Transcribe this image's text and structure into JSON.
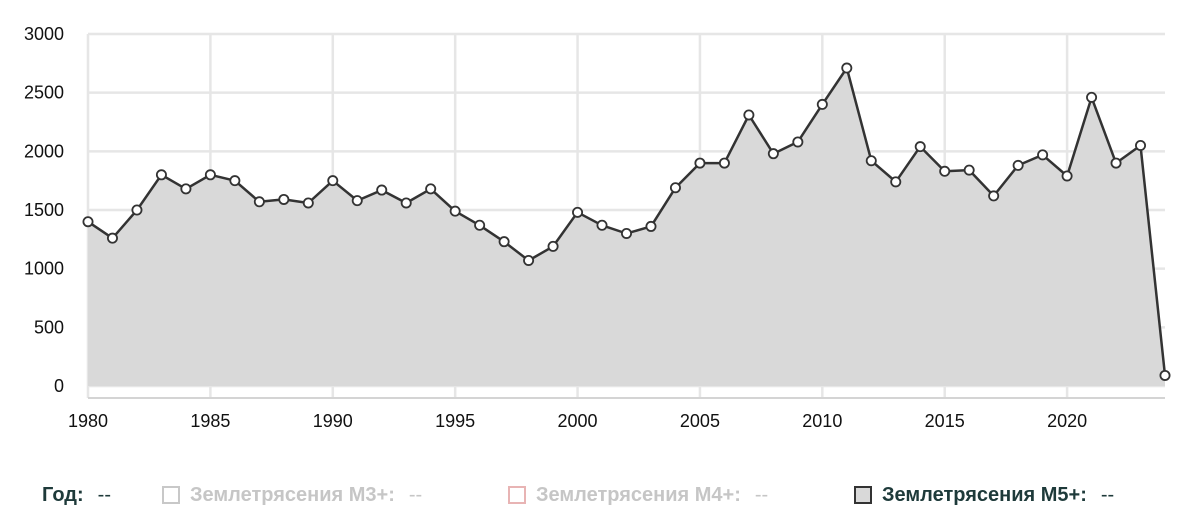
{
  "chart_data": {
    "type": "area",
    "x": [
      1980,
      1981,
      1982,
      1983,
      1984,
      1985,
      1986,
      1987,
      1988,
      1989,
      1990,
      1991,
      1992,
      1993,
      1994,
      1995,
      1996,
      1997,
      1998,
      1999,
      2000,
      2001,
      2002,
      2003,
      2004,
      2005,
      2006,
      2007,
      2008,
      2009,
      2010,
      2011,
      2012,
      2013,
      2014,
      2015,
      2016,
      2017,
      2018,
      2019,
      2020,
      2021,
      2022,
      2023,
      2024
    ],
    "series": [
      {
        "name": "Землетрясения M5+:",
        "values": [
          1400,
          1260,
          1500,
          1800,
          1680,
          1800,
          1750,
          1570,
          1590,
          1560,
          1750,
          1580,
          1670,
          1560,
          1680,
          1490,
          1370,
          1230,
          1070,
          1190,
          1480,
          1370,
          1300,
          1360,
          1690,
          1900,
          1900,
          2310,
          1980,
          2080,
          2400,
          2710,
          1920,
          1740,
          2040,
          1830,
          1840,
          1620,
          1880,
          1970,
          1790,
          2460,
          1900,
          2050,
          90
        ]
      }
    ],
    "xticks": [
      "1980",
      "1985",
      "1990",
      "1995",
      "2000",
      "2005",
      "2010",
      "2015",
      "2020"
    ],
    "yticks": [
      "0",
      "500",
      "1000",
      "1500",
      "2000",
      "2500",
      "3000"
    ],
    "xlim": [
      1980,
      2024
    ],
    "ylim": [
      0,
      3000
    ],
    "grid": true,
    "legend_position": "bottom",
    "colors": {
      "line": "#333333",
      "fill": "#d9d9d9",
      "marker_fill": "#ffffff",
      "grid": "#e6e6e6"
    }
  },
  "legend": {
    "year_label": "Год:",
    "year_value": "--",
    "items": [
      {
        "label": "Землетрясения M3+:",
        "value": "--",
        "color": "#c8c8c8",
        "state": "inactive"
      },
      {
        "label": "Землетрясения M4+:",
        "value": "--",
        "color": "#e8b4b4",
        "state": "inactive"
      },
      {
        "label": "Землетрясения M5+:",
        "value": "--",
        "color": "#333333",
        "state": "active"
      }
    ]
  }
}
